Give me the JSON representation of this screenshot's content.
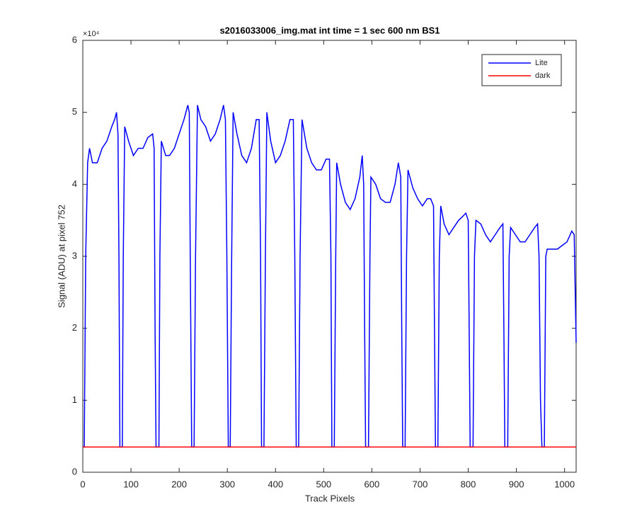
{
  "chart_data": {
    "type": "line",
    "title": "s2016033006_img.mat int time = 1 sec  600 nm BS1",
    "x_label": "Track Pixels",
    "y_label": "Signal (ADU) at pixel 752",
    "y_exponent_label": "×10⁴",
    "xlim": [
      0,
      1024
    ],
    "ylim": [
      0,
      60000
    ],
    "xticks": [
      0,
      100,
      200,
      300,
      400,
      500,
      600,
      700,
      800,
      900,
      1000
    ],
    "yticks": [
      {
        "value": 0,
        "label": "0"
      },
      {
        "value": 10000,
        "label": "1"
      },
      {
        "value": 20000,
        "label": "2"
      },
      {
        "value": 30000,
        "label": "3"
      },
      {
        "value": 40000,
        "label": "4"
      },
      {
        "value": 50000,
        "label": "5"
      },
      {
        "value": 60000,
        "label": "6"
      }
    ],
    "legend_position": "top-right",
    "series": [
      {
        "name": "Lite",
        "color": "#0000ff",
        "x": [
          0,
          3,
          6,
          10,
          14,
          20,
          30,
          40,
          50,
          60,
          66,
          70,
          73,
          75,
          77,
          82,
          84,
          87,
          95,
          105,
          115,
          125,
          135,
          145,
          148,
          150,
          152,
          158,
          160,
          163,
          172,
          180,
          190,
          200,
          210,
          218,
          221,
          223,
          226,
          231,
          234,
          238,
          245,
          255,
          265,
          275,
          285,
          292,
          296,
          299,
          302,
          306,
          309,
          312,
          320,
          330,
          340,
          350,
          360,
          366,
          369,
          371,
          376,
          379,
          382,
          390,
          400,
          410,
          420,
          430,
          437,
          440,
          443,
          448,
          451,
          455,
          465,
          475,
          485,
          495,
          505,
          512,
          515,
          517,
          522,
          525,
          527,
          535,
          545,
          555,
          565,
          575,
          580,
          583,
          585,
          587,
          593,
          596,
          598,
          608,
          618,
          628,
          638,
          648,
          655,
          660,
          662,
          664,
          669,
          672,
          675,
          685,
          695,
          705,
          715,
          722,
          728,
          730,
          732,
          737,
          740,
          743,
          750,
          760,
          770,
          780,
          788,
          795,
          800,
          802,
          804,
          810,
          813,
          816,
          826,
          836,
          846,
          856,
          866,
          872,
          874,
          876,
          882,
          885,
          888,
          898,
          908,
          918,
          928,
          938,
          944,
          947,
          950,
          953,
          958,
          961,
          964,
          975,
          985,
          995,
          1005,
          1015,
          1020,
          1024
        ],
        "values": [
          3500,
          3500,
          30000,
          43000,
          45000,
          43000,
          43000,
          45000,
          46000,
          48000,
          49000,
          50000,
          47000,
          30000,
          3500,
          3500,
          30000,
          48000,
          46000,
          44000,
          45000,
          45000,
          46500,
          47000,
          45000,
          20000,
          3500,
          3500,
          30000,
          46000,
          44000,
          44000,
          45000,
          47000,
          49000,
          51000,
          50000,
          30000,
          3500,
          3500,
          30000,
          51000,
          49000,
          48000,
          46000,
          47000,
          49000,
          51000,
          49000,
          30000,
          3500,
          3500,
          30000,
          50000,
          47000,
          44000,
          43000,
          45000,
          49000,
          49000,
          30000,
          3500,
          3500,
          30000,
          50000,
          46000,
          43000,
          44000,
          46000,
          49000,
          49000,
          30000,
          3500,
          3500,
          30000,
          49000,
          45000,
          43000,
          42000,
          42000,
          43500,
          43500,
          30000,
          3500,
          3500,
          30000,
          43000,
          40000,
          37500,
          36500,
          38000,
          41000,
          44000,
          40000,
          20000,
          3500,
          3500,
          30000,
          41000,
          40000,
          38000,
          37500,
          37500,
          40000,
          43000,
          41000,
          20000,
          3500,
          3500,
          30000,
          42000,
          39500,
          38000,
          37000,
          38000,
          38000,
          37000,
          20000,
          3500,
          3500,
          30000,
          37000,
          34500,
          33000,
          34000,
          35000,
          35500,
          36000,
          35000,
          20000,
          3500,
          3500,
          30000,
          35000,
          34500,
          33000,
          32000,
          33000,
          34000,
          34500,
          20000,
          3500,
          3500,
          30000,
          34000,
          33000,
          32000,
          32000,
          33000,
          34000,
          34500,
          30000,
          10000,
          3500,
          3500,
          30000,
          31000,
          31000,
          31000,
          31500,
          32000,
          33500,
          33000,
          18000
        ]
      },
      {
        "name": "dark",
        "color": "#ff0000",
        "x": [
          0,
          1024
        ],
        "values": [
          3500,
          3500
        ]
      }
    ]
  }
}
